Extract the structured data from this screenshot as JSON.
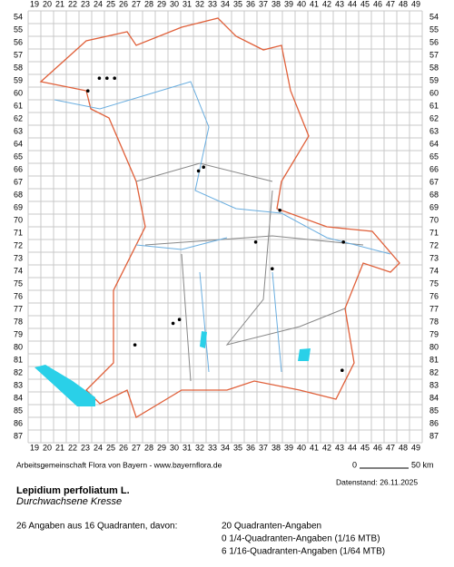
{
  "grid": {
    "columns": [
      19,
      20,
      21,
      22,
      23,
      24,
      25,
      26,
      27,
      28,
      29,
      30,
      31,
      32,
      33,
      34,
      35,
      36,
      37,
      38,
      39,
      40,
      41,
      42,
      43,
      44,
      45,
      46,
      47,
      48,
      49
    ],
    "rows": [
      54,
      55,
      56,
      57,
      58,
      59,
      60,
      61,
      62,
      63,
      64,
      65,
      66,
      67,
      68,
      69,
      70,
      71,
      72,
      73,
      74,
      75,
      76,
      77,
      78,
      79,
      80,
      81,
      82,
      83,
      84,
      85,
      86,
      87
    ]
  },
  "points": [
    {
      "x": 24.1,
      "y": 58.8
    },
    {
      "x": 24.7,
      "y": 58.8
    },
    {
      "x": 25.3,
      "y": 58.8
    },
    {
      "x": 23.2,
      "y": 59.8
    },
    {
      "x": 32.3,
      "y": 65.8
    },
    {
      "x": 31.9,
      "y": 66.1
    },
    {
      "x": 38.3,
      "y": 69.2
    },
    {
      "x": 36.4,
      "y": 71.7
    },
    {
      "x": 43.3,
      "y": 71.7
    },
    {
      "x": 37.7,
      "y": 73.8
    },
    {
      "x": 30.4,
      "y": 77.8
    },
    {
      "x": 29.9,
      "y": 78.1
    },
    {
      "x": 26.9,
      "y": 79.8
    },
    {
      "x": 43.2,
      "y": 81.8
    }
  ],
  "footer": {
    "credit": "Arbeitsgemeinschaft Flora von Bayern - www.bayernflora.de",
    "scale_start": "0",
    "scale_end": "50 km",
    "date": "Datenstand: 26.11.2025",
    "species": "Lepidium perfoliatum L.",
    "common_name": "Durchwachsene Kresse",
    "summary": "26 Angaben aus 16 Quadranten, davon:",
    "detail_1": "20 Quadranten-Angaben",
    "detail_2": "0 1/4-Quadranten-Angaben (1/16 MTB)",
    "detail_3": "6 1/16-Quadranten-Angaben (1/64 MTB)"
  }
}
